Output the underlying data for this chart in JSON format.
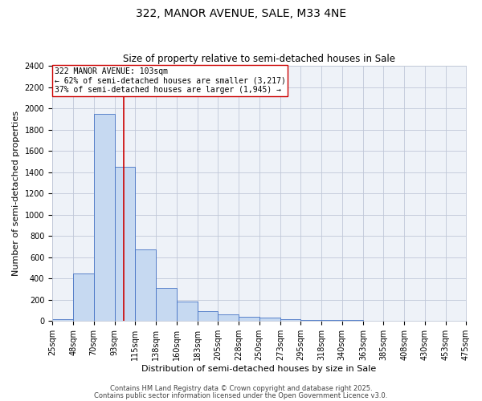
{
  "title": "322, MANOR AVENUE, SALE, M33 4NE",
  "subtitle": "Size of property relative to semi-detached houses in Sale",
  "xlabel": "Distribution of semi-detached houses by size in Sale",
  "ylabel": "Number of semi-detached properties",
  "bin_edges": [
    25,
    48,
    70,
    93,
    115,
    138,
    160,
    183,
    205,
    228,
    250,
    273,
    295,
    318,
    340,
    363,
    385,
    408,
    430,
    453,
    475
  ],
  "bar_heights": [
    20,
    450,
    1950,
    1450,
    670,
    310,
    180,
    95,
    65,
    40,
    30,
    15,
    10,
    10,
    10,
    3,
    2,
    1,
    0,
    0
  ],
  "bar_color": "#c6d9f1",
  "bar_edgecolor": "#4472c4",
  "grid_color": "#c0c8d8",
  "background_color": "#eef2f8",
  "vline_x": 103,
  "vline_color": "#cc0000",
  "annotation_text": "322 MANOR AVENUE: 103sqm\n← 62% of semi-detached houses are smaller (3,217)\n37% of semi-detached houses are larger (1,945) →",
  "annotation_box_color": "#ffffff",
  "annotation_box_edgecolor": "#cc0000",
  "ylim": [
    0,
    2400
  ],
  "yticks": [
    0,
    200,
    400,
    600,
    800,
    1000,
    1200,
    1400,
    1600,
    1800,
    2000,
    2200,
    2400
  ],
  "footnote1": "Contains HM Land Registry data © Crown copyright and database right 2025.",
  "footnote2": "Contains public sector information licensed under the Open Government Licence v3.0.",
  "title_fontsize": 10,
  "subtitle_fontsize": 8.5,
  "label_fontsize": 8,
  "tick_fontsize": 7,
  "annotation_fontsize": 7,
  "footnote_fontsize": 6
}
